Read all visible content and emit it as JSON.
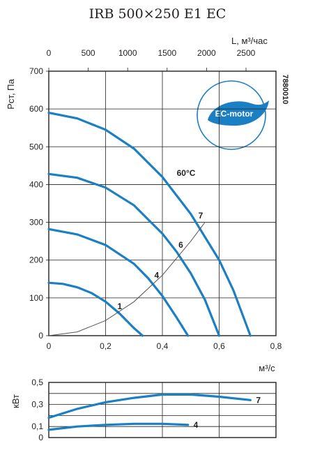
{
  "figure": {
    "title": "IRB 500×250 E1 EC",
    "code": "7880010",
    "badge": "EC-motor",
    "colors": {
      "curve": "#1b7fc4",
      "grid": "#231f20",
      "system": "#555555"
    }
  },
  "chart_data": [
    {
      "type": "line",
      "title": "IRB 500×250 E1 EC",
      "xlabel": "м³/с",
      "x2label": "L, м³/час",
      "ylabel": "Рст, Па",
      "xlim": [
        0,
        0.8
      ],
      "x2lim": [
        0,
        2880
      ],
      "ylim": [
        0,
        700
      ],
      "xticks": [
        "0",
        "0,2",
        "0,4",
        "0,6",
        "0,8"
      ],
      "xtick_values": [
        0,
        0.2,
        0.4,
        0.6,
        0.8
      ],
      "x2ticks": [
        "0",
        "500",
        "1000",
        "1500",
        "2000",
        "2500"
      ],
      "x2tick_values": [
        0,
        500,
        1000,
        1500,
        2000,
        2500
      ],
      "yticks": [
        "0",
        "100",
        "200",
        "300",
        "400",
        "500",
        "600",
        "700"
      ],
      "ytick_values": [
        0,
        100,
        200,
        300,
        400,
        500,
        600,
        700
      ],
      "grid": true,
      "annotation": "60°C",
      "series": [
        {
          "name": "1",
          "x": [
            0,
            0.05,
            0.1,
            0.15,
            0.2,
            0.25,
            0.3,
            0.33
          ],
          "y": [
            140,
            137,
            128,
            113,
            90,
            58,
            20,
            0
          ]
        },
        {
          "name": "4",
          "x": [
            0,
            0.1,
            0.2,
            0.3,
            0.35,
            0.4,
            0.45,
            0.49
          ],
          "y": [
            282,
            268,
            240,
            190,
            152,
            105,
            48,
            0
          ]
        },
        {
          "name": "6",
          "x": [
            0,
            0.1,
            0.2,
            0.3,
            0.4,
            0.45,
            0.5,
            0.55,
            0.6
          ],
          "y": [
            428,
            418,
            392,
            345,
            270,
            222,
            165,
            95,
            0
          ]
        },
        {
          "name": "7",
          "x": [
            0,
            0.1,
            0.2,
            0.3,
            0.4,
            0.5,
            0.6,
            0.65,
            0.71
          ],
          "y": [
            590,
            575,
            545,
            495,
            420,
            322,
            200,
            120,
            0
          ]
        },
        {
          "name": "",
          "x": [
            0,
            0.1,
            0.2,
            0.3,
            0.4,
            0.5,
            0.55
          ],
          "y": [
            0,
            10,
            40,
            90,
            160,
            250,
            300
          ]
        }
      ],
      "curve_labels": [
        {
          "text": "1",
          "x": 0.25,
          "y": 78
        },
        {
          "text": "4",
          "x": 0.38,
          "y": 160
        },
        {
          "text": "6",
          "x": 0.465,
          "y": 240
        },
        {
          "text": "7",
          "x": 0.535,
          "y": 318
        }
      ]
    },
    {
      "type": "line",
      "ylabel": "кВт",
      "xlim": [
        0,
        0.8
      ],
      "ylim": [
        0,
        0.5
      ],
      "yticks": [
        "0",
        "0,1",
        "0,3",
        "0,5"
      ],
      "ytick_values": [
        0,
        0.1,
        0.3,
        0.5
      ],
      "grid": true,
      "series": [
        {
          "name": "7",
          "x": [
            0,
            0.1,
            0.2,
            0.3,
            0.4,
            0.5,
            0.6,
            0.71
          ],
          "y": [
            0.18,
            0.26,
            0.32,
            0.36,
            0.39,
            0.39,
            0.37,
            0.34
          ]
        },
        {
          "name": "4",
          "x": [
            0,
            0.1,
            0.2,
            0.3,
            0.4,
            0.49
          ],
          "y": [
            0.07,
            0.1,
            0.115,
            0.125,
            0.125,
            0.115
          ]
        }
      ]
    }
  ]
}
